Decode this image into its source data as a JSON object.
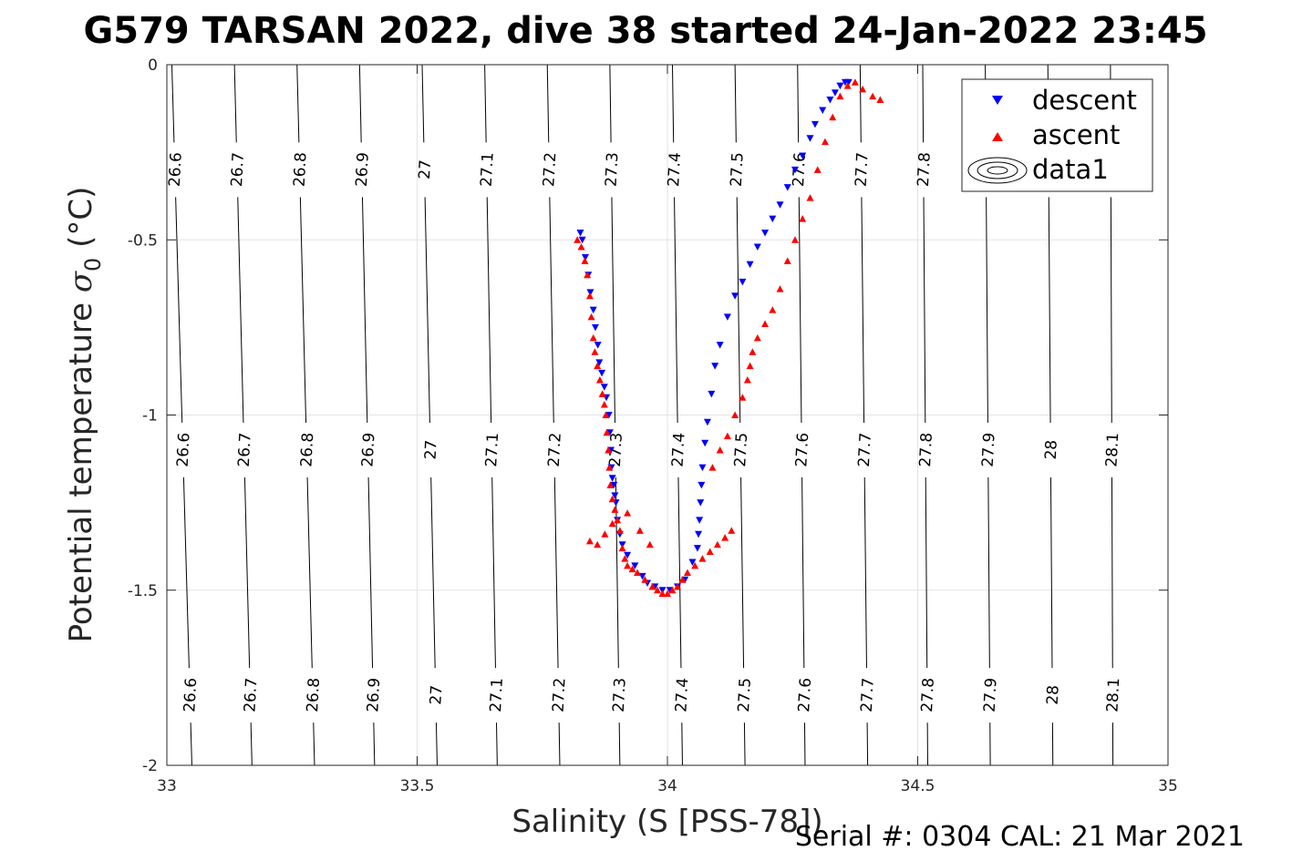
{
  "chart_data": {
    "type": "scatter",
    "title": "G579 TARSAN 2022, dive 38 started 24-Jan-2022 23:45",
    "xlabel": "Salinity (S [PSS-78])",
    "ylabel": "Potential temperature σ₀ (°C)",
    "ylabel_main": "Potential temperature ",
    "ylabel_sigma": "σ",
    "ylabel_sub": "0",
    "ylabel_unit": " (°C)",
    "xlim": [
      33,
      35
    ],
    "ylim": [
      -2,
      0
    ],
    "xticks": [
      "33",
      "33.5",
      "34",
      "34.5",
      "35"
    ],
    "yticks": [
      "0",
      "-0.5",
      "-1",
      "-1.5",
      "-2"
    ],
    "grid": true,
    "legend_position": "top-right",
    "legend": [
      "descent",
      "ascent",
      "data1"
    ],
    "contour_levels": [
      "26.6",
      "26.7",
      "26.8",
      "26.9",
      "27",
      "27.1",
      "27.2",
      "27.3",
      "27.4",
      "27.5",
      "27.6",
      "27.7",
      "27.8",
      "27.9",
      "28",
      "28.1"
    ],
    "contour_x_at_0": [
      33.01,
      33.135,
      33.26,
      33.385,
      33.51,
      33.635,
      33.76,
      33.885,
      34.01,
      34.135,
      34.26,
      34.385,
      34.51,
      34.635,
      34.76,
      34.885
    ],
    "contour_x_at_neg2": [
      33.05,
      33.17,
      33.295,
      33.415,
      33.54,
      33.66,
      33.785,
      33.905,
      34.03,
      34.155,
      34.275,
      34.4,
      34.52,
      34.645,
      34.77,
      34.89
    ],
    "contour_label_rows": [
      -0.3,
      -1.1,
      -1.8
    ],
    "series": [
      {
        "name": "descent",
        "color": "#0000ff",
        "marker": "triangle-down",
        "x": [
          33.826,
          33.83,
          33.836,
          33.842,
          33.846,
          33.852,
          33.856,
          33.861,
          33.864,
          33.869,
          33.874,
          33.878,
          33.883,
          33.885,
          33.887,
          33.888,
          33.89,
          33.893,
          33.895,
          33.897,
          33.9,
          33.905,
          33.91,
          33.92,
          33.935,
          33.95,
          33.96,
          33.975,
          33.99,
          34.005,
          34.02,
          34.035,
          34.05,
          34.06,
          34.062,
          34.064,
          34.066,
          34.068,
          34.07,
          34.075,
          34.08,
          34.088,
          34.095,
          34.105,
          34.12,
          34.135,
          34.15,
          34.165,
          34.18,
          34.195,
          34.21,
          34.225,
          34.24,
          34.255,
          34.27,
          34.285,
          34.295,
          34.31,
          34.325,
          34.335,
          34.345,
          34.355,
          34.362
        ],
        "y": [
          -0.48,
          -0.5,
          -0.55,
          -0.6,
          -0.65,
          -0.7,
          -0.75,
          -0.8,
          -0.85,
          -0.88,
          -0.92,
          -0.95,
          -1.0,
          -1.05,
          -1.1,
          -1.15,
          -1.18,
          -1.2,
          -1.23,
          -1.25,
          -1.3,
          -1.34,
          -1.37,
          -1.4,
          -1.43,
          -1.46,
          -1.48,
          -1.49,
          -1.5,
          -1.5,
          -1.49,
          -1.47,
          -1.42,
          -1.38,
          -1.34,
          -1.3,
          -1.25,
          -1.2,
          -1.15,
          -1.08,
          -1.02,
          -0.94,
          -0.86,
          -0.8,
          -0.72,
          -0.66,
          -0.62,
          -0.57,
          -0.52,
          -0.48,
          -0.44,
          -0.4,
          -0.35,
          -0.3,
          -0.26,
          -0.21,
          -0.17,
          -0.13,
          -0.1,
          -0.08,
          -0.06,
          -0.05,
          -0.05
        ]
      },
      {
        "name": "ascent",
        "color": "#ff0000",
        "marker": "triangle-up",
        "x": [
          33.82,
          33.828,
          33.835,
          33.84,
          33.845,
          33.848,
          33.852,
          33.855,
          33.86,
          33.865,
          33.87,
          33.874,
          33.877,
          33.879,
          33.882,
          33.884,
          33.886,
          33.89,
          33.895,
          33.9,
          33.905,
          33.91,
          33.915,
          33.92,
          33.93,
          33.94,
          33.955,
          33.97,
          33.98,
          33.99,
          34.0,
          34.01,
          34.02,
          34.03,
          34.04,
          34.055,
          34.07,
          34.085,
          34.1,
          34.115,
          34.128,
          33.845,
          33.86,
          33.875,
          33.89,
          33.92,
          33.945,
          33.965,
          34.09,
          34.105,
          34.12,
          34.135,
          34.15,
          34.16,
          34.165,
          34.17,
          34.18,
          34.195,
          34.21,
          34.225,
          34.24,
          34.255,
          34.27,
          34.285,
          34.3,
          34.315,
          34.33,
          34.345,
          34.36,
          34.375,
          34.39,
          34.41,
          34.425
        ],
        "y": [
          -0.5,
          -0.52,
          -0.56,
          -0.6,
          -0.66,
          -0.72,
          -0.78,
          -0.82,
          -0.86,
          -0.9,
          -0.94,
          -0.97,
          -1.0,
          -1.05,
          -1.1,
          -1.15,
          -1.2,
          -1.24,
          -1.27,
          -1.3,
          -1.33,
          -1.38,
          -1.41,
          -1.43,
          -1.44,
          -1.45,
          -1.47,
          -1.49,
          -1.5,
          -1.51,
          -1.51,
          -1.5,
          -1.49,
          -1.47,
          -1.45,
          -1.43,
          -1.41,
          -1.39,
          -1.37,
          -1.35,
          -1.33,
          -1.36,
          -1.37,
          -1.34,
          -1.31,
          -1.28,
          -1.33,
          -1.37,
          -1.15,
          -1.1,
          -1.06,
          -1.0,
          -0.95,
          -0.9,
          -0.86,
          -0.82,
          -0.78,
          -0.74,
          -0.7,
          -0.64,
          -0.56,
          -0.5,
          -0.44,
          -0.38,
          -0.3,
          -0.22,
          -0.15,
          -0.09,
          -0.06,
          -0.05,
          -0.07,
          -0.09,
          -0.1
        ]
      }
    ]
  },
  "footer": "Serial #: 0304  CAL: 21 Mar 2021"
}
